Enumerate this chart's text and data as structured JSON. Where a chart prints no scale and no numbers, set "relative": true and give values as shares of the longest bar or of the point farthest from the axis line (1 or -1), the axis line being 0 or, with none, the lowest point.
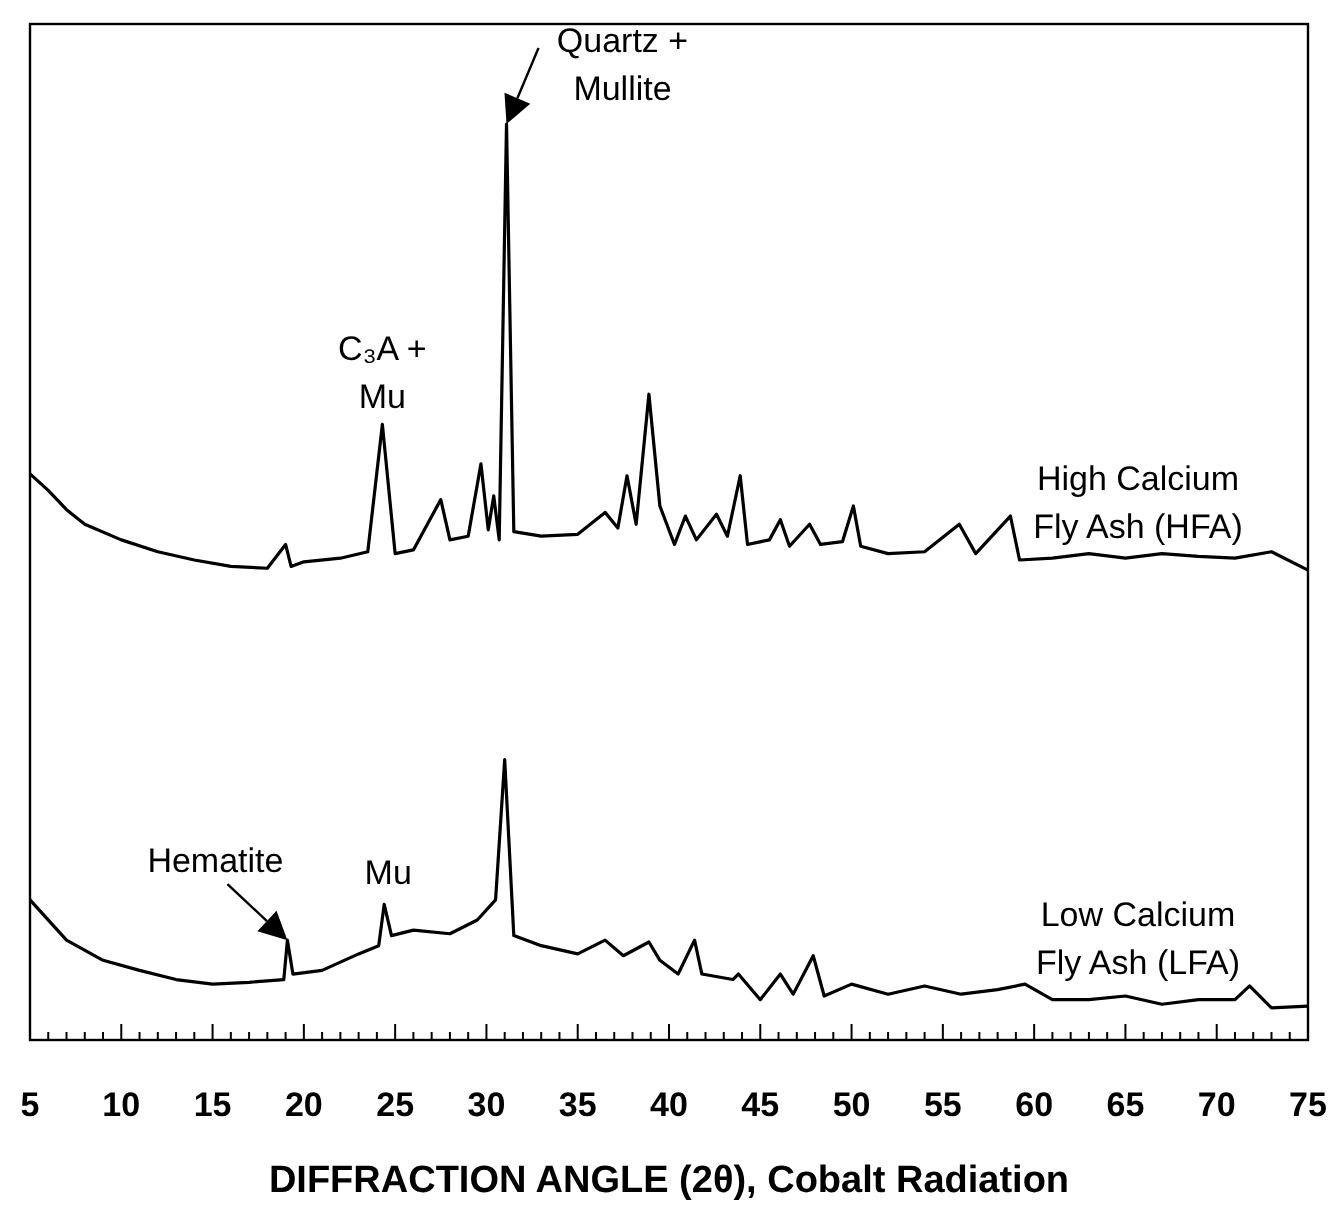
{
  "chart_data": {
    "type": "line",
    "relative": true,
    "xlabel": "DIFFRACTION ANGLE (2θ), Cobalt Radiation",
    "xlim": [
      5,
      75
    ],
    "xticks": [
      5,
      {
        "value": 6,
        "label": null
      },
      {
        "value": 7,
        "label": null
      },
      {
        "value": 8,
        "label": null
      },
      {
        "value": 9,
        "label": null
      },
      10,
      {
        "value": 11,
        "label": null
      },
      {
        "value": 12,
        "label": null
      },
      {
        "value": 13,
        "label": null
      },
      {
        "value": 14,
        "label": null
      },
      15,
      {
        "value": 16,
        "label": null
      },
      {
        "value": 17,
        "label": null
      },
      {
        "value": 18,
        "label": null
      },
      {
        "value": 19,
        "label": null
      },
      20,
      {
        "value": 21,
        "label": null
      },
      {
        "value": 22,
        "label": null
      },
      {
        "value": 23,
        "label": null
      },
      {
        "value": 24,
        "label": null
      },
      25,
      {
        "value": 26,
        "label": null
      },
      {
        "value": 27,
        "label": null
      },
      {
        "value": 28,
        "label": null
      },
      {
        "value": 29,
        "label": null
      },
      30,
      {
        "value": 31,
        "label": null
      },
      {
        "value": 32,
        "label": null
      },
      {
        "value": 33,
        "label": null
      },
      {
        "value": 34,
        "label": null
      },
      35,
      {
        "value": 36,
        "label": null
      },
      {
        "value": 37,
        "label": null
      },
      {
        "value": 38,
        "label": null
      },
      {
        "value": 39,
        "label": null
      },
      40,
      {
        "value": 41,
        "label": null
      },
      {
        "value": 42,
        "label": null
      },
      {
        "value": 43,
        "label": null
      },
      {
        "value": 44,
        "label": null
      },
      45,
      {
        "value": 46,
        "label": null
      },
      {
        "value": 47,
        "label": null
      },
      {
        "value": 48,
        "label": null
      },
      {
        "value": 49,
        "label": null
      },
      50,
      {
        "value": 51,
        "label": null
      },
      {
        "value": 52,
        "label": null
      },
      {
        "value": 53,
        "label": null
      },
      {
        "value": 54,
        "label": null
      },
      55,
      {
        "value": 56,
        "label": null
      },
      {
        "value": 57,
        "label": null
      },
      {
        "value": 58,
        "label": null
      },
      {
        "value": 59,
        "label": null
      },
      60,
      {
        "value": 61,
        "label": null
      },
      {
        "value": 62,
        "label": null
      },
      {
        "value": 63,
        "label": null
      },
      {
        "value": 64,
        "label": null
      },
      65,
      {
        "value": 66,
        "label": null
      },
      {
        "value": 67,
        "label": null
      },
      {
        "value": 68,
        "label": null
      },
      {
        "value": 69,
        "label": null
      },
      70,
      {
        "value": 71,
        "label": null
      },
      {
        "value": 72,
        "label": null
      },
      {
        "value": 73,
        "label": null
      },
      {
        "value": 74,
        "label": null
      },
      75
    ],
    "tick_labels": "x",
    "grid": false,
    "marker": "none",
    "line_style": "solid",
    "series": [
      {
        "name": "High Calcium Fly Ash (HFA)",
        "color": "#000000",
        "x": [
          5,
          6,
          7,
          8,
          10,
          12,
          14,
          16,
          18,
          19,
          19.3,
          20,
          22,
          23.5,
          24.3,
          25,
          26,
          27.5,
          28,
          29,
          29.7,
          30.1,
          30.4,
          30.7,
          31.1,
          31.5,
          33,
          35,
          36.5,
          37.2,
          37.7,
          38.2,
          38.9,
          39.5,
          40.3,
          40.9,
          41.5,
          42.6,
          43.2,
          43.9,
          44.3,
          45.5,
          46.1,
          46.6,
          47.7,
          48.3,
          49.5,
          50.1,
          50.5,
          52,
          54,
          55.9,
          56.8,
          58.7,
          59.2,
          61,
          63,
          65,
          67,
          69,
          71,
          73,
          75
        ],
        "values": [
          0.618,
          0.6,
          0.579,
          0.563,
          0.546,
          0.533,
          0.524,
          0.517,
          0.515,
          0.541,
          0.517,
          0.522,
          0.526,
          0.533,
          0.672,
          0.531,
          0.535,
          0.59,
          0.546,
          0.55,
          0.629,
          0.557,
          0.594,
          0.546,
          1,
          0.555,
          0.55,
          0.552,
          0.576,
          0.559,
          0.616,
          0.563,
          0.705,
          0.583,
          0.541,
          0.572,
          0.546,
          0.574,
          0.55,
          0.616,
          0.541,
          0.546,
          0.568,
          0.539,
          0.563,
          0.541,
          0.544,
          0.583,
          0.539,
          0.531,
          0.533,
          0.563,
          0.531,
          0.572,
          0.524,
          0.526,
          0.531,
          0.526,
          0.531,
          0.528,
          0.526,
          0.533,
          0.513
        ]
      },
      {
        "name": "Low Calcium Fly Ash (LFA)",
        "color": "#000000",
        "x": [
          5,
          7,
          9,
          11,
          13,
          15,
          17,
          18.9,
          19.1,
          19.4,
          21,
          23,
          24.1,
          24.4,
          24.8,
          26,
          28,
          29.5,
          30.5,
          31,
          31.5,
          33,
          35,
          36.5,
          37.5,
          38.9,
          39.5,
          40.5,
          41.4,
          41.8,
          43.5,
          43.8,
          45,
          46.1,
          46.8,
          47.9,
          48.5,
          50,
          52,
          54,
          56,
          58,
          59.5,
          61,
          63,
          65,
          67,
          69,
          71,
          71.8,
          73,
          75
        ],
        "values": [
          0.153,
          0.109,
          0.087,
          0.076,
          0.066,
          0.061,
          0.063,
          0.066,
          0.109,
          0.072,
          0.076,
          0.094,
          0.103,
          0.148,
          0.114,
          0.12,
          0.116,
          0.131,
          0.153,
          0.306,
          0.114,
          0.103,
          0.094,
          0.109,
          0.092,
          0.107,
          0.087,
          0.072,
          0.109,
          0.072,
          0.066,
          0.072,
          0.044,
          0.072,
          0.05,
          0.092,
          0.048,
          0.061,
          0.05,
          0.059,
          0.05,
          0.055,
          0.061,
          0.044,
          0.044,
          0.048,
          0.039,
          0.044,
          0.044,
          0.059,
          0.035,
          0.037
        ]
      }
    ],
    "annotations": [
      {
        "text": "C₃A + Mu",
        "x": 24.3,
        "y": 0.672
      },
      {
        "text": "Quartz + Mullite",
        "x": 31.1,
        "y": 1
      },
      {
        "text": "Hematite",
        "x": 19.1,
        "y": 0.109
      },
      {
        "text": "Mu",
        "x": 24.4,
        "y": 0.148
      }
    ]
  }
}
